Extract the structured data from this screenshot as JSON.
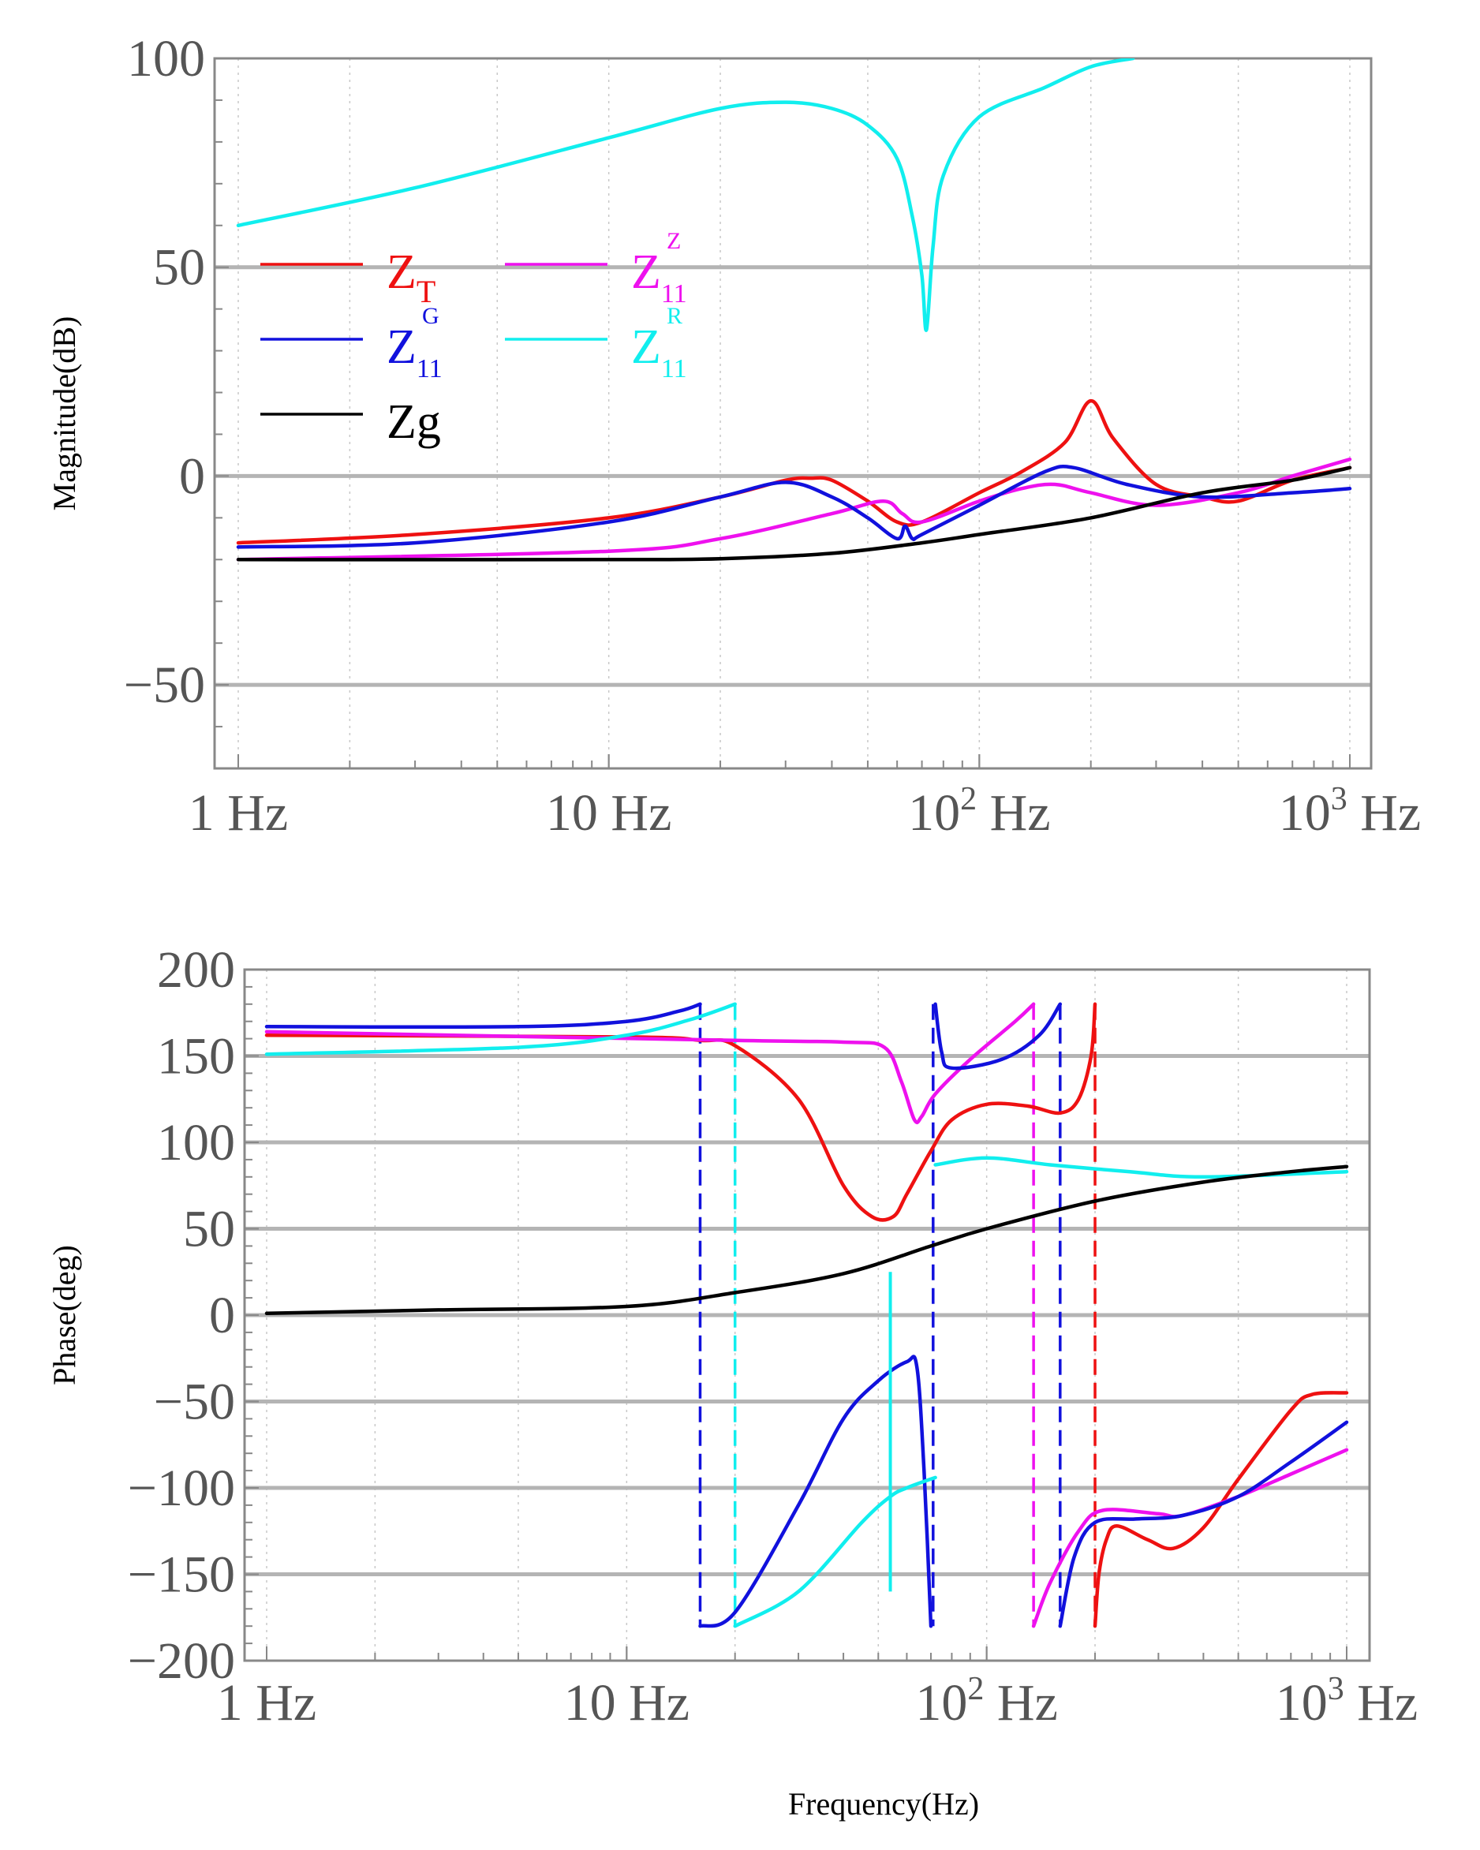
{
  "chart_data": [
    {
      "type": "line",
      "id": "magnitude",
      "title": "",
      "ylabel": "Magnitude(dB)",
      "xlabel": "",
      "x_scale": "log",
      "xlim": [
        1,
        1000
      ],
      "ylim": [
        -70,
        100
      ],
      "x_ticks": [
        {
          "value": 1,
          "label": "1 Hz"
        },
        {
          "value": 10,
          "label": "10 Hz"
        },
        {
          "value": 100,
          "label": "10",
          "sup": "2",
          "unit": " Hz"
        },
        {
          "value": 1000,
          "label": "10",
          "sup": "3",
          "unit": " Hz"
        }
      ],
      "y_ticks": [
        {
          "value": 100,
          "label": "100"
        },
        {
          "value": 50,
          "label": "50"
        },
        {
          "value": 0,
          "label": "0"
        },
        {
          "value": -50,
          "label": "−50"
        }
      ],
      "legend": [
        {
          "series": "ZT",
          "base": "Z",
          "sub": "T",
          "sup": ""
        },
        {
          "series": "Z11Z",
          "base": "Z",
          "sub": "11",
          "sup": "Z"
        },
        {
          "series": "Z11G",
          "base": "Z",
          "sub": "11",
          "sup": "G"
        },
        {
          "series": "Z11R",
          "base": "Z",
          "sub": "11",
          "sup": "R"
        },
        {
          "series": "Zg",
          "base": "Zg",
          "sub": "",
          "sup": ""
        }
      ],
      "series": [
        {
          "name": "ZT",
          "color": "#ee1111",
          "points": [
            [
              1,
              -16
            ],
            [
              3,
              -14
            ],
            [
              10,
              -10
            ],
            [
              20,
              -5
            ],
            [
              30,
              -1
            ],
            [
              35,
              -0.5
            ],
            [
              40,
              -1
            ],
            [
              50,
              -6
            ],
            [
              60,
              -11
            ],
            [
              70,
              -11
            ],
            [
              100,
              -4
            ],
            [
              130,
              1
            ],
            [
              170,
              8
            ],
            [
              200,
              18
            ],
            [
              230,
              9
            ],
            [
              300,
              -2
            ],
            [
              400,
              -5
            ],
            [
              500,
              -6
            ],
            [
              700,
              -1
            ],
            [
              1000,
              2
            ]
          ]
        },
        {
          "name": "Z11Z",
          "color": "#ee11ee",
          "points": [
            [
              1,
              -20
            ],
            [
              10,
              -18
            ],
            [
              20,
              -15
            ],
            [
              40,
              -9
            ],
            [
              55,
              -6
            ],
            [
              62,
              -9
            ],
            [
              70,
              -11
            ],
            [
              100,
              -6
            ],
            [
              130,
              -3
            ],
            [
              160,
              -2
            ],
            [
              200,
              -4
            ],
            [
              300,
              -7
            ],
            [
              500,
              -4
            ],
            [
              700,
              0
            ],
            [
              1000,
              4
            ]
          ]
        },
        {
          "name": "Z11G",
          "color": "#1111dd",
          "points": [
            [
              1,
              -17
            ],
            [
              3,
              -16
            ],
            [
              10,
              -11
            ],
            [
              20,
              -5
            ],
            [
              30,
              -1.5
            ],
            [
              40,
              -5
            ],
            [
              50,
              -10
            ],
            [
              60,
              -15
            ],
            [
              63,
              -12
            ],
            [
              66,
              -15
            ],
            [
              70,
              -14
            ],
            [
              100,
              -7
            ],
            [
              150,
              1
            ],
            [
              180,
              2
            ],
            [
              250,
              -2
            ],
            [
              400,
              -5
            ],
            [
              700,
              -4
            ],
            [
              1000,
              -3
            ]
          ]
        },
        {
          "name": "Z11R",
          "color": "#11eeee",
          "points": [
            [
              1,
              60
            ],
            [
              3,
              69
            ],
            [
              10,
              81
            ],
            [
              20,
              88
            ],
            [
              30,
              89.5
            ],
            [
              40,
              88
            ],
            [
              50,
              84
            ],
            [
              60,
              76
            ],
            [
              66,
              62
            ],
            [
              70,
              48
            ],
            [
              72,
              35
            ],
            [
              75,
              55
            ],
            [
              80,
              72
            ],
            [
              100,
              86
            ],
            [
              150,
              93
            ],
            [
              200,
              98
            ],
            [
              260,
              100
            ]
          ]
        },
        {
          "name": "Zg",
          "color": "#000000",
          "points": [
            [
              1,
              -20
            ],
            [
              10,
              -20
            ],
            [
              20,
              -19.8
            ],
            [
              40,
              -18.5
            ],
            [
              70,
              -16
            ],
            [
              100,
              -14
            ],
            [
              200,
              -10
            ],
            [
              400,
              -4
            ],
            [
              700,
              -1
            ],
            [
              1000,
              2
            ]
          ]
        }
      ]
    },
    {
      "type": "line",
      "id": "phase",
      "title": "",
      "ylabel": "Phase(deg)",
      "xlabel": "Frequency(Hz)",
      "x_scale": "log",
      "xlim": [
        1,
        1000
      ],
      "ylim": [
        -200,
        200
      ],
      "x_ticks": [
        {
          "value": 1,
          "label": "1 Hz"
        },
        {
          "value": 10,
          "label": "10 Hz"
        },
        {
          "value": 100,
          "label": "10",
          "sup": "2",
          "unit": " Hz"
        },
        {
          "value": 1000,
          "label": "10",
          "sup": "3",
          "unit": " Hz"
        }
      ],
      "y_ticks": [
        {
          "value": 200,
          "label": "200"
        },
        {
          "value": 150,
          "label": "150"
        },
        {
          "value": 100,
          "label": "100"
        },
        {
          "value": 50,
          "label": "50"
        },
        {
          "value": 0,
          "label": "0"
        },
        {
          "value": -50,
          "label": "−50"
        },
        {
          "value": -100,
          "label": "−100"
        },
        {
          "value": -150,
          "label": "−150"
        },
        {
          "value": -200,
          "label": "−200"
        }
      ],
      "series": [
        {
          "name": "ZT",
          "color": "#ee1111",
          "segments": [
            [
              [
                1,
                162
              ],
              [
                10,
                161
              ],
              [
                16,
                159
              ],
              [
                20,
                156
              ],
              [
                30,
                125
              ],
              [
                40,
                75
              ],
              [
                48,
                57
              ],
              [
                55,
                57
              ],
              [
                60,
                70
              ],
              [
                70,
                95
              ],
              [
                80,
                113
              ],
              [
                100,
                122
              ],
              [
                130,
                121
              ],
              [
                160,
                117
              ],
              [
                180,
                125
              ],
              [
                195,
                150
              ],
              [
                200,
                180
              ]
            ],
            [
              [
                200,
                -180
              ],
              [
                205,
                -150
              ],
              [
                215,
                -130
              ],
              [
                230,
                -122
              ],
              [
                280,
                -130
              ],
              [
                330,
                -135
              ],
              [
                400,
                -123
              ],
              [
                500,
                -95
              ],
              [
                700,
                -55
              ],
              [
                800,
                -46
              ],
              [
                1000,
                -45
              ]
            ]
          ],
          "jumps": [
            200
          ]
        },
        {
          "name": "Z11Z",
          "color": "#ee11ee",
          "segments": [
            [
              [
                1,
                164
              ],
              [
                20,
                159
              ],
              [
                40,
                158
              ],
              [
                52,
                155
              ],
              [
                58,
                135
              ],
              [
                63,
                113
              ],
              [
                66,
                115
              ],
              [
                72,
                128
              ],
              [
                90,
                148
              ],
              [
                120,
                170
              ],
              [
                135,
                180
              ]
            ],
            [
              [
                135,
                -180
              ],
              [
                150,
                -155
              ],
              [
                180,
                -125
              ],
              [
                210,
                -113
              ],
              [
                300,
                -115
              ],
              [
                350,
                -116
              ],
              [
                500,
                -105
              ],
              [
                700,
                -92
              ],
              [
                1000,
                -78
              ]
            ]
          ],
          "jumps": [
            135
          ]
        },
        {
          "name": "Z11G",
          "color": "#1111dd",
          "segments": [
            [
              [
                1,
                167
              ],
              [
                5,
                167
              ],
              [
                10,
                170
              ],
              [
                14,
                176
              ],
              [
                16,
                180
              ]
            ],
            [
              [
                16,
                -180
              ],
              [
                20,
                -172
              ],
              [
                30,
                -110
              ],
              [
                40,
                -60
              ],
              [
                50,
                -38
              ],
              [
                60,
                -27
              ],
              [
                64,
                -30
              ],
              [
                67,
                -90
              ],
              [
                70,
                -180
              ]
            ],
            [
              [
                72,
                180
              ],
              [
                75,
                152
              ],
              [
                80,
                143
              ],
              [
                110,
                148
              ],
              [
                140,
                162
              ],
              [
                160,
                180
              ]
            ],
            [
              [
                160,
                -180
              ],
              [
                175,
                -140
              ],
              [
                200,
                -120
              ],
              [
                260,
                -118
              ],
              [
                350,
                -116
              ],
              [
                500,
                -105
              ],
              [
                700,
                -85
              ],
              [
                1000,
                -62
              ]
            ]
          ],
          "jumps": [
            16,
            71,
            160
          ]
        },
        {
          "name": "Z11R",
          "color": "#11eeee",
          "segments": [
            [
              [
                1,
                151
              ],
              [
                5,
                155
              ],
              [
                10,
                162
              ],
              [
                15,
                171
              ],
              [
                20,
                180
              ]
            ],
            [
              [
                20,
                -180
              ],
              [
                30,
                -160
              ],
              [
                45,
                -120
              ],
              [
                54,
                -105
              ],
              [
                60,
                -100
              ],
              [
                72,
                -94
              ]
            ],
            [
              [
                72,
                87
              ],
              [
                100,
                91
              ],
              [
                150,
                87
              ],
              [
                250,
                83
              ],
              [
                400,
                80
              ],
              [
                1000,
                83
              ]
            ]
          ],
          "spikes": [
            [
              54,
              -160,
              25
            ]
          ],
          "jumps": [
            20
          ]
        },
        {
          "name": "Zg",
          "color": "#000000",
          "segments": [
            [
              [
                1,
                1
              ],
              [
                3,
                3
              ],
              [
                10,
                5
              ],
              [
                20,
                13
              ],
              [
                40,
                24
              ],
              [
                70,
                40
              ],
              [
                100,
                50
              ],
              [
                200,
                66
              ],
              [
                400,
                77
              ],
              [
                700,
                83
              ],
              [
                1000,
                86
              ]
            ]
          ]
        }
      ]
    }
  ]
}
